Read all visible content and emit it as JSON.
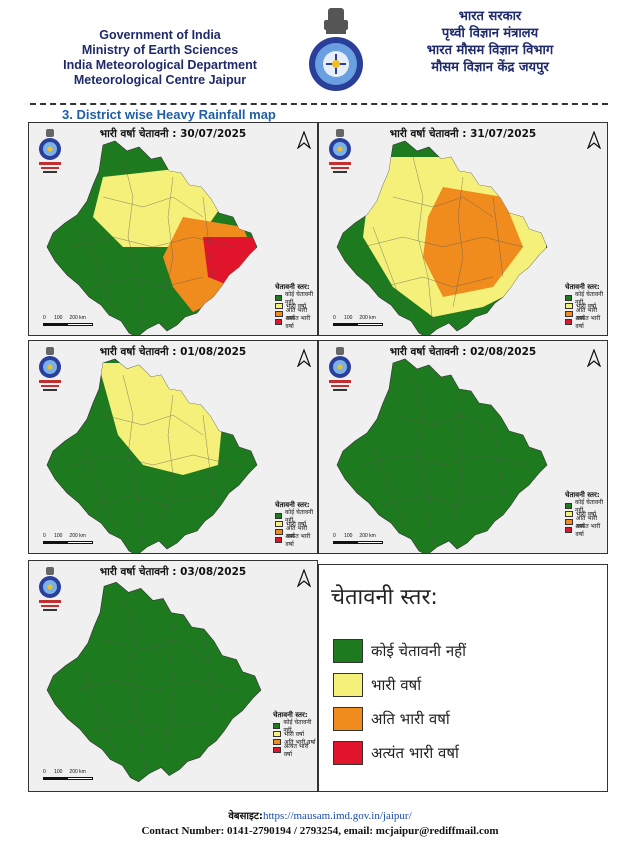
{
  "header": {
    "left_lines": [
      "Government of India",
      "Ministry of Earth Sciences",
      "India Meteorological Department",
      "Meteorological Centre Jaipur"
    ],
    "right_lines": [
      "भारत सरकार",
      "पृथ्वी विज्ञान मंत्रालय",
      "भारत मौसम विज्ञान विभाग",
      "मौसम विज्ञान केंद्र जयपुर"
    ]
  },
  "section_title": "3.  District  wise  Heavy Rainfall map",
  "colors": {
    "no_warning": "#1e7a1e",
    "heavy": "#f5f07a",
    "very_heavy": "#f08c1e",
    "extremely_heavy": "#e0142a"
  },
  "panels": [
    {
      "title": "भारी वर्षा चेतावनी : 30/07/2025"
    },
    {
      "title": "भारी वर्षा चेतावनी :  31/07/2025"
    },
    {
      "title": "भारी वर्षा चेतावनी : 01/08/2025"
    },
    {
      "title": "भारी वर्षा चेतावनी : 02/08/2025"
    },
    {
      "title": "भारी वर्षा चेतावनी : 03/08/2025"
    }
  ],
  "mini_legend": {
    "heading": "चेतावनी स्तर:",
    "items": [
      "कोई चेतावनी नहीं",
      "भारी वर्षा",
      "अति भारी वर्षा",
      "अत्यंत भारी वर्षा"
    ]
  },
  "scale_labels": [
    "0",
    "100",
    "200 km"
  ],
  "legend": {
    "title": "चेतावनी स्तर:",
    "items": [
      "कोई चेतावनी नहीं",
      "भारी वर्षा",
      "अति भारी वर्षा",
      "अत्यंत भारी वर्षा"
    ]
  },
  "footer": {
    "website_label": "वेबसाइट:",
    "website_url": "https://mausam.imd.gov.in/jaipur/",
    "contact": "Contact Number: 0141-2790194 / 2793254, email: mcjaipur@rediffmail.com"
  }
}
